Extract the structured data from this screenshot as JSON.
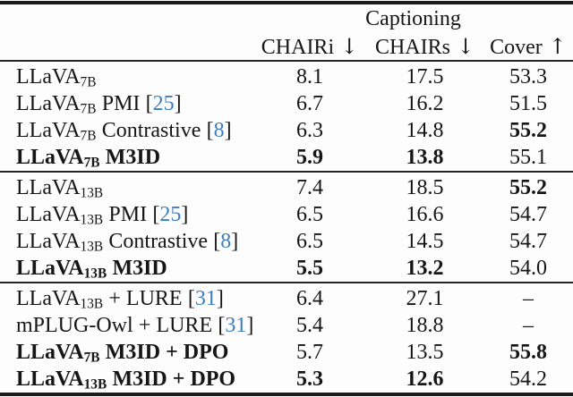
{
  "table": {
    "group_header": "Captioning",
    "columns": [
      {
        "label": "CHAIRi",
        "arrow": "↓"
      },
      {
        "label": "CHAIRs",
        "arrow": "↓"
      },
      {
        "label": "Cover",
        "arrow": "↑"
      }
    ],
    "citation_color": "#3d7dc1",
    "text_color": "#161616",
    "blocks": [
      {
        "rows": [
          {
            "base": "LLaVA",
            "sub": "7B",
            "method": "",
            "cite": "",
            "bold": false,
            "values": [
              "8.1",
              "17.5",
              "53.3"
            ],
            "bold_values": [
              false,
              false,
              false
            ]
          },
          {
            "base": "LLaVA",
            "sub": "7B",
            "method": "PMI",
            "cite": "25",
            "bold": false,
            "values": [
              "6.7",
              "16.2",
              "51.5"
            ],
            "bold_values": [
              false,
              false,
              false
            ]
          },
          {
            "base": "LLaVA",
            "sub": "7B",
            "method": "Contrastive",
            "cite": "8",
            "bold": false,
            "values": [
              "6.3",
              "14.8",
              "55.2"
            ],
            "bold_values": [
              false,
              false,
              true
            ]
          },
          {
            "base": "LLaVA",
            "sub": "7B",
            "method": "M3ID",
            "cite": "",
            "bold": true,
            "values": [
              "5.9",
              "13.8",
              "55.1"
            ],
            "bold_values": [
              true,
              true,
              false
            ]
          }
        ]
      },
      {
        "rows": [
          {
            "base": "LLaVA",
            "sub": "13B",
            "method": "",
            "cite": "",
            "bold": false,
            "values": [
              "7.4",
              "18.5",
              "55.2"
            ],
            "bold_values": [
              false,
              false,
              true
            ]
          },
          {
            "base": "LLaVA",
            "sub": "13B",
            "method": "PMI",
            "cite": "25",
            "bold": false,
            "values": [
              "6.5",
              "16.6",
              "54.7"
            ],
            "bold_values": [
              false,
              false,
              false
            ]
          },
          {
            "base": "LLaVA",
            "sub": "13B",
            "method": "Contrastive",
            "cite": "8",
            "bold": false,
            "values": [
              "6.5",
              "14.5",
              "54.7"
            ],
            "bold_values": [
              false,
              false,
              false
            ]
          },
          {
            "base": "LLaVA",
            "sub": "13B",
            "method": "M3ID",
            "cite": "",
            "bold": true,
            "values": [
              "5.5",
              "13.2",
              "54.0"
            ],
            "bold_values": [
              true,
              true,
              false
            ]
          }
        ]
      },
      {
        "rows": [
          {
            "base": "LLaVA",
            "sub": "13B",
            "method": "+ LURE",
            "cite": "31",
            "bold": false,
            "values": [
              "6.4",
              "27.1",
              "–"
            ],
            "bold_values": [
              false,
              false,
              false
            ]
          },
          {
            "base": "mPLUG-Owl",
            "sub": "",
            "method": "+ LURE",
            "cite": "31",
            "bold": false,
            "values": [
              "5.4",
              "18.8",
              "–"
            ],
            "bold_values": [
              false,
              false,
              false
            ]
          },
          {
            "base": "LLaVA",
            "sub": "7B",
            "method": "M3ID + DPO",
            "cite": "",
            "bold": true,
            "values": [
              "5.7",
              "13.5",
              "55.8"
            ],
            "bold_values": [
              false,
              false,
              true
            ]
          },
          {
            "base": "LLaVA",
            "sub": "13B",
            "method": "M3ID + DPO",
            "cite": "",
            "bold": true,
            "values": [
              "5.3",
              "12.6",
              "54.2"
            ],
            "bold_values": [
              true,
              true,
              false
            ]
          }
        ]
      }
    ]
  }
}
